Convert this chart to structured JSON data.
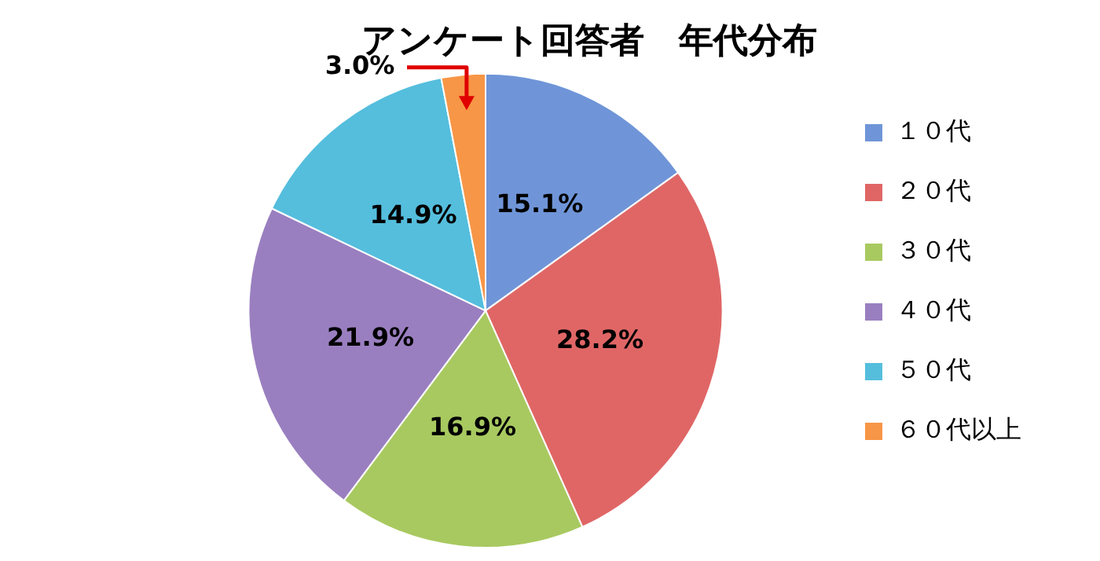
{
  "chart_data": {
    "type": "pie",
    "title": "アンケート回答者　年代分布",
    "categories": [
      "１０代",
      "２０代",
      "３０代",
      "４０代",
      "５０代",
      "６０代以上"
    ],
    "values": [
      15.1,
      28.2,
      16.9,
      21.9,
      14.9,
      3.0
    ],
    "value_labels": [
      "15.1%",
      "28.2%",
      "16.9%",
      "21.9%",
      "14.9%",
      "3.0%"
    ],
    "colors": [
      "#6f95d8",
      "#e06666",
      "#a8c960",
      "#9a7fc0",
      "#55bedd",
      "#f79646"
    ],
    "legend": "right"
  }
}
